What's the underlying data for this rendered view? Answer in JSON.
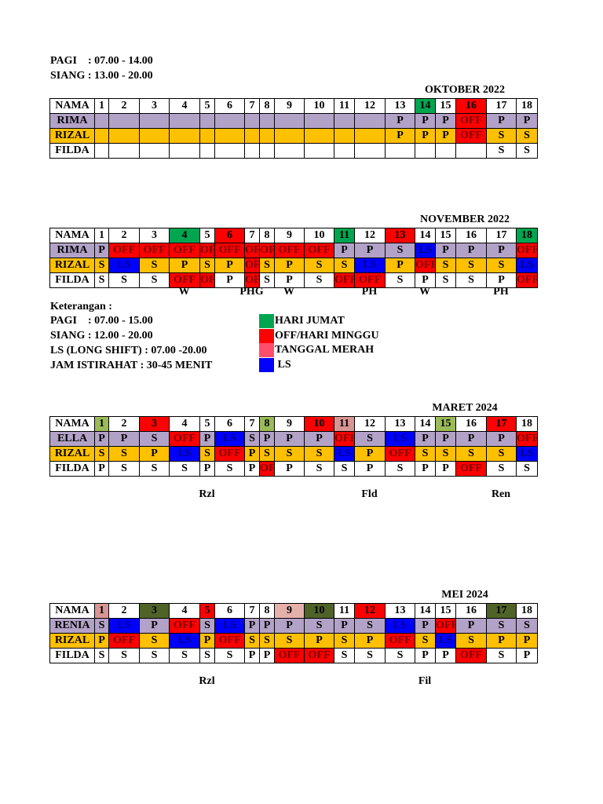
{
  "header": {
    "lines": [
      "PAGI    : 07.00 - 14.00",
      "SIANG : 13.00 - 20.00"
    ]
  },
  "status_colors": {
    "OFF": "#ff0000",
    "LS": "#0000ff"
  },
  "tables": [
    {
      "title": "OKTOBER 2022",
      "name_header": "NAMA",
      "days": [
        1,
        2,
        3,
        4,
        5,
        6,
        7,
        8,
        9,
        10,
        11,
        12,
        13,
        14,
        15,
        16,
        17,
        18
      ],
      "day_colors": [
        null,
        null,
        null,
        null,
        null,
        null,
        null,
        null,
        null,
        null,
        null,
        null,
        null,
        "#00a550",
        null,
        "#ff0000",
        null,
        null
      ],
      "rows": [
        {
          "name": "RIMA",
          "color": "#b3a2c7",
          "cells": [
            null,
            null,
            null,
            null,
            null,
            null,
            null,
            null,
            null,
            null,
            null,
            null,
            "P",
            "P",
            "P",
            "OFF",
            "P",
            "P"
          ]
        },
        {
          "name": "RIZAL",
          "color": "#ffc000",
          "cells": [
            null,
            null,
            null,
            null,
            null,
            null,
            null,
            null,
            null,
            null,
            null,
            null,
            "P",
            "P",
            "P",
            "OFF",
            "S",
            "S"
          ]
        },
        {
          "name": "FILDA",
          "color": "#ffffff",
          "cells": [
            null,
            null,
            null,
            null,
            null,
            null,
            null,
            null,
            null,
            null,
            null,
            null,
            null,
            null,
            null,
            null,
            "S",
            "S"
          ]
        }
      ]
    },
    {
      "title": "NOVEMBER 2022",
      "name_header": "NAMA",
      "days": [
        1,
        2,
        3,
        4,
        5,
        6,
        7,
        8,
        9,
        10,
        11,
        12,
        13,
        14,
        15,
        16,
        17,
        18
      ],
      "day_colors": [
        null,
        null,
        null,
        "#00a550",
        null,
        "#ff0000",
        null,
        null,
        null,
        null,
        "#00a550",
        null,
        "#ff0000",
        null,
        null,
        null,
        null,
        "#00a550"
      ],
      "rows": [
        {
          "name": "RIMA",
          "color": "#b3a2c7",
          "cells": [
            "P",
            "OFF",
            "OFF",
            "OFF",
            "OFF",
            "OFF",
            "OFF",
            "OFF",
            "OFF",
            "OFF",
            "P",
            "P",
            "S",
            "LS",
            "P",
            "P",
            "P",
            "OFF"
          ]
        },
        {
          "name": "RIZAL",
          "color": "#ffc000",
          "cells": [
            "S",
            "LS",
            "S",
            "P",
            "S",
            "P",
            "OFF",
            "S",
            "P",
            "S",
            "S",
            "LS",
            "P",
            "OFF",
            "S",
            "S",
            "S",
            "LS"
          ]
        },
        {
          "name": "FILDA",
          "color": "#ffffff",
          "cells": [
            "S",
            "S",
            "S",
            "OFF",
            "OFF",
            "P",
            "OFF",
            "S",
            "P",
            "S",
            "OFF",
            "OFF",
            "S",
            "P",
            "S",
            "S",
            "P",
            "OFF"
          ]
        }
      ],
      "notes": [
        null,
        null,
        null,
        "W",
        null,
        null,
        "PHG",
        null,
        "W",
        null,
        null,
        "PH",
        null,
        "W",
        null,
        null,
        "PH",
        null
      ]
    },
    {
      "title": "MARET 2024",
      "name_header": "NAMA",
      "days": [
        1,
        2,
        3,
        4,
        5,
        6,
        7,
        8,
        9,
        10,
        11,
        12,
        13,
        14,
        15,
        16,
        17,
        18
      ],
      "day_colors": [
        "#9bbb59",
        null,
        "#ff0000",
        null,
        null,
        null,
        null,
        "#9bbb59",
        null,
        "#ff0000",
        "#d99594",
        null,
        null,
        null,
        "#9bbb59",
        null,
        "#ff0000",
        null
      ],
      "rows": [
        {
          "name": "ELLA",
          "color": "#b3a2c7",
          "cells": [
            "P",
            "P",
            "S",
            "OFF",
            "P",
            "LS",
            "S",
            "P",
            "P",
            "P",
            "OFF",
            "S",
            "LS",
            "P",
            "P",
            "P",
            "P",
            "OFF"
          ]
        },
        {
          "name": "RIZAL",
          "color": "#ffc000",
          "cells": [
            "S",
            "S",
            "P",
            "LS",
            "S",
            "OFF",
            "P",
            "S",
            "S",
            "S",
            "LS",
            "P",
            "OFF",
            "S",
            "S",
            "S",
            "S",
            "LS"
          ]
        },
        {
          "name": "FILDA",
          "color": "#ffffff",
          "cells": [
            "P",
            "S",
            "S",
            "S",
            "P",
            "S",
            "P",
            "OFF",
            "P",
            "S",
            "S",
            "P",
            "S",
            "P",
            "P",
            "OFF",
            "S",
            "S"
          ]
        }
      ],
      "signatures": [
        null,
        null,
        null,
        null,
        "Rzl",
        null,
        null,
        null,
        null,
        null,
        null,
        "Fld",
        null,
        null,
        null,
        null,
        "Ren",
        null
      ]
    },
    {
      "title": "MEI 2024",
      "name_header": "NAMA",
      "days": [
        1,
        2,
        3,
        4,
        5,
        6,
        7,
        8,
        9,
        10,
        11,
        12,
        13,
        14,
        15,
        16,
        17,
        18
      ],
      "day_colors": [
        "#d99594",
        null,
        "#4f6228",
        null,
        "#ff0000",
        null,
        null,
        null,
        "#e6b0aa",
        "#4f6228",
        null,
        "#ff0000",
        null,
        null,
        null,
        null,
        "#4f6228",
        null
      ],
      "rows": [
        {
          "name": "RENIA",
          "color": "#b3a2c7",
          "cells": [
            "S",
            "LS",
            "P",
            "OFF",
            "S",
            "LS",
            "P",
            "P",
            "P",
            "S",
            "P",
            "S",
            "LS",
            "P",
            "OFF",
            "P",
            "S",
            "S"
          ]
        },
        {
          "name": "RIZAL",
          "color": "#ffc000",
          "cells": [
            "P",
            "OFF",
            "S",
            "LS",
            "P",
            "OFF",
            "S",
            "S",
            "S",
            "P",
            "S",
            "P",
            "OFF",
            "S",
            "LS",
            "S",
            "P",
            "P"
          ]
        },
        {
          "name": "FILDA",
          "color": "#ffffff",
          "cells": [
            "S",
            "S",
            "S",
            "S",
            "S",
            "S",
            "P",
            "P",
            "OFF",
            "OFF",
            "S",
            "S",
            "S",
            "P",
            "P",
            "OFF",
            "S",
            "P"
          ]
        }
      ],
      "signatures": [
        null,
        null,
        null,
        null,
        "Rzl",
        null,
        null,
        null,
        null,
        null,
        null,
        null,
        null,
        "Fil",
        null,
        null,
        null,
        null
      ]
    }
  ],
  "legend": {
    "title": "Keterangan :",
    "lines": [
      "PAGI    : 07.00 - 15.00",
      "SIANG : 12.00 - 20.00",
      "LS (LONG SHIFT) : 07.00 -20.00",
      "JAM ISTIRAHAT : 30-45 MENIT"
    ],
    "items": [
      {
        "label": "HARI JUMAT",
        "color": "#00a550"
      },
      {
        "label": "OFF/HARI MINGGU",
        "color": "#ff0000"
      },
      {
        "label": "TANGGAL MERAH",
        "color": "#ff4d6a"
      },
      {
        "label": " LS",
        "color": "#0000ff"
      }
    ]
  }
}
